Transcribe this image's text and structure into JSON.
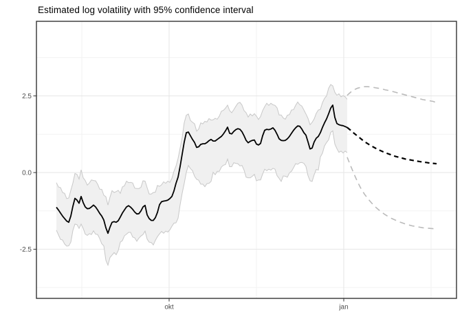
{
  "title": "Estimated log volatility with 95% confidence interval",
  "colors": {
    "history_line": "#000000",
    "forecast_line": "#000000",
    "forecast_ci": "#bababa",
    "ribbon_fill": "#f0f0f0",
    "ribbon_edge": "#c8c8c8",
    "grid_major": "#e6e6e6",
    "grid_minor": "#f2f2f2",
    "panel_border": "#333333",
    "axis_tick": "#333333",
    "axis_text": "#4d4d4d",
    "title_text": "#000000",
    "panel_bg": "#ffffff"
  },
  "chart_data": {
    "type": "line",
    "title": "Estimated log volatility with 95% confidence interval",
    "xlabel": "",
    "ylabel": "",
    "legend": "none",
    "grid": "on",
    "x_axis": {
      "unit": "days (day 0 = first observation, early August)",
      "domain_days": [
        -10.5,
        210.8
      ],
      "major_ticks": [
        {
          "day": 59.4,
          "label": "okt"
        },
        {
          "day": 151.4,
          "label": "jan"
        }
      ],
      "minor_tick_days": [
        13.4,
        105.4,
        197.4
      ]
    },
    "y_axis": {
      "domain": [
        -4.1,
        4.93
      ],
      "major_ticks": [
        {
          "value": 2.5,
          "label": "2.5"
        },
        {
          "value": 0.0,
          "label": "0.0"
        },
        {
          "value": -2.5,
          "label": "-2.5"
        }
      ],
      "minor_tick_values": [
        3.75,
        1.25,
        -1.25,
        -3.75
      ]
    },
    "series": [
      {
        "name": "estimated_mean",
        "role": "historical mean log volatility",
        "style": "solid_black",
        "day_start": 0,
        "day_step": 1.0866,
        "values": [
          -1.13,
          -1.22,
          -1.32,
          -1.42,
          -1.5,
          -1.58,
          -1.62,
          -1.42,
          -1.1,
          -0.84,
          -0.9,
          -1.0,
          -0.78,
          -0.98,
          -1.12,
          -1.18,
          -1.17,
          -1.12,
          -1.06,
          -1.12,
          -1.22,
          -1.33,
          -1.42,
          -1.55,
          -1.8,
          -1.98,
          -1.78,
          -1.62,
          -1.6,
          -1.62,
          -1.57,
          -1.45,
          -1.32,
          -1.22,
          -1.12,
          -1.08,
          -1.13,
          -1.2,
          -1.29,
          -1.35,
          -1.34,
          -1.25,
          -1.12,
          -1.07,
          -1.38,
          -1.5,
          -1.56,
          -1.56,
          -1.47,
          -1.3,
          -1.05,
          -0.95,
          -0.93,
          -0.92,
          -0.9,
          -0.85,
          -0.78,
          -0.6,
          -0.35,
          -0.15,
          0.2,
          0.6,
          1.0,
          1.3,
          1.32,
          1.2,
          1.08,
          0.98,
          0.82,
          0.84,
          0.92,
          0.94,
          0.94,
          0.98,
          1.04,
          1.08,
          1.03,
          1.03,
          1.08,
          1.13,
          1.18,
          1.26,
          1.36,
          1.48,
          1.28,
          1.26,
          1.34,
          1.4,
          1.43,
          1.41,
          1.33,
          1.2,
          1.05,
          0.97,
          1.02,
          1.05,
          1.06,
          0.93,
          0.9,
          0.95,
          1.2,
          1.38,
          1.41,
          1.4,
          1.42,
          1.46,
          1.38,
          1.25,
          1.1,
          1.05,
          1.04,
          1.05,
          1.1,
          1.18,
          1.28,
          1.38,
          1.46,
          1.52,
          1.51,
          1.42,
          1.3,
          1.22,
          1.0,
          0.77,
          0.8,
          1.0,
          1.12,
          1.18,
          1.3,
          1.47,
          1.62,
          1.75,
          1.92,
          2.1,
          2.2,
          1.8,
          1.6,
          1.56,
          1.54,
          1.53,
          1.5,
          1.47
        ]
      },
      {
        "name": "ci95_upper",
        "role": "historical 95% CI upper bound (ribbon top)",
        "style": "ribbon_edge",
        "day_start": 0,
        "day_step": 1.0866,
        "values": [
          -0.33,
          -0.47,
          -0.49,
          -0.65,
          -0.68,
          -0.85,
          -0.83,
          -0.58,
          -0.34,
          -0.03,
          -0.06,
          -0.21,
          0.09,
          -0.17,
          -0.26,
          -0.41,
          -0.34,
          -0.24,
          -0.26,
          -0.27,
          -0.38,
          -0.54,
          -0.55,
          -0.74,
          -0.79,
          -1.06,
          -0.8,
          -0.59,
          -0.65,
          -0.62,
          -0.58,
          -0.68,
          -0.47,
          -0.43,
          -0.28,
          -0.33,
          -0.32,
          -0.34,
          -0.51,
          -0.52,
          -0.52,
          -0.48,
          -0.27,
          -0.28,
          -0.49,
          -0.7,
          -0.7,
          -0.65,
          -0.64,
          -0.42,
          -0.45,
          -0.4,
          -0.3,
          -0.35,
          -0.28,
          -0.32,
          -0.19,
          0.04,
          0.21,
          0.46,
          0.8,
          1.15,
          1.63,
          1.87,
          1.91,
          1.7,
          1.64,
          1.59,
          1.35,
          1.42,
          1.62,
          1.59,
          1.67,
          1.65,
          1.76,
          1.71,
          1.72,
          1.77,
          1.74,
          1.84,
          2.0,
          2.03,
          2.1,
          2.2,
          2.02,
          1.95,
          2.05,
          2.16,
          2.26,
          2.29,
          2.2,
          2.02,
          1.95,
          1.81,
          1.91,
          1.85,
          1.92,
          1.84,
          1.73,
          1.83,
          2.02,
          2.15,
          2.26,
          2.19,
          2.26,
          2.21,
          2.19,
          2.11,
          1.88,
          1.88,
          1.78,
          1.74,
          1.87,
          1.89,
          2.04,
          2.05,
          2.19,
          2.3,
          2.21,
          2.17,
          2.04,
          1.91,
          1.77,
          1.56,
          1.64,
          1.75,
          1.93,
          2.04,
          2.06,
          2.28,
          2.42,
          2.5,
          2.75,
          2.87,
          2.83,
          2.62,
          2.52,
          2.57,
          2.47,
          2.51,
          2.47,
          2.39
        ]
      },
      {
        "name": "ci95_lower",
        "role": "historical 95% CI lower bound (ribbon bottom)",
        "style": "ribbon_edge",
        "day_start": 0,
        "day_step": 1.0866,
        "values": [
          -1.88,
          -2.03,
          -2.18,
          -2.2,
          -2.33,
          -2.4,
          -2.39,
          -2.27,
          -1.89,
          -1.68,
          -1.7,
          -1.82,
          -1.68,
          -1.82,
          -2.01,
          -2.05,
          -1.99,
          -2.02,
          -1.9,
          -2.01,
          -2.02,
          -2.15,
          -2.32,
          -2.39,
          -2.86,
          -3.02,
          -2.77,
          -2.69,
          -2.61,
          -2.68,
          -2.54,
          -2.27,
          -2.22,
          -2.06,
          -2.01,
          -1.95,
          -1.95,
          -2.1,
          -2.13,
          -2.24,
          -2.14,
          -2.07,
          -2.02,
          -1.91,
          -2.17,
          -2.27,
          -2.28,
          -2.36,
          -2.21,
          -2.09,
          -2.0,
          -1.92,
          -1.98,
          -1.91,
          -1.94,
          -1.87,
          -1.75,
          -1.65,
          -1.64,
          -1.49,
          -1.05,
          -0.67,
          -0.35,
          0.01,
          0.23,
          0.13,
          0.06,
          -0.12,
          -0.22,
          -0.25,
          -0.38,
          -0.38,
          -0.46,
          -0.36,
          -0.35,
          -0.29,
          0.01,
          -0.07,
          0.04,
          0.04,
          0.18,
          0.24,
          0.26,
          0.44,
          0.19,
          0.19,
          0.32,
          0.3,
          0.29,
          0.22,
          0.23,
          0.08,
          -0.15,
          -0.17,
          -0.17,
          -0.12,
          -0.06,
          -0.27,
          -0.24,
          -0.24,
          -0.05,
          0.11,
          0.06,
          0.11,
          0.08,
          0.14,
          0.11,
          -0.1,
          -0.19,
          -0.29,
          -0.11,
          -0.12,
          -0.15,
          -0.01,
          0.04,
          0.16,
          0.29,
          0.27,
          0.32,
          0.33,
          0.3,
          0.2,
          -0.1,
          -0.27,
          -0.29,
          -0.07,
          0.1,
          0.08,
          0.51,
          0.63,
          0.87,
          0.98,
          1.07,
          1.31,
          1.36,
          0.93,
          0.78,
          0.66,
          0.7,
          0.64,
          0.7,
          0.65
        ]
      },
      {
        "name": "forecast_mean",
        "role": "forecast mean log volatility",
        "style": "dashed_black",
        "day_start": 153.2,
        "day_step": 1.811,
        "values": [
          1.47,
          1.38,
          1.28,
          1.19,
          1.1,
          1.01,
          0.94,
          0.87,
          0.81,
          0.75,
          0.7,
          0.65,
          0.61,
          0.57,
          0.53,
          0.5,
          0.47,
          0.44,
          0.42,
          0.4,
          0.38,
          0.36,
          0.34,
          0.33,
          0.31,
          0.3,
          0.29
        ]
      },
      {
        "name": "forecast_ci95_upper",
        "role": "forecast 95% CI upper bound",
        "style": "dashed_gray",
        "day_start": 153.2,
        "day_step": 1.811,
        "values": [
          2.52,
          2.62,
          2.7,
          2.75,
          2.78,
          2.8,
          2.8,
          2.79,
          2.77,
          2.75,
          2.73,
          2.7,
          2.68,
          2.65,
          2.62,
          2.59,
          2.56,
          2.53,
          2.5,
          2.47,
          2.44,
          2.41,
          2.38,
          2.36,
          2.34,
          2.32,
          2.28
        ]
      },
      {
        "name": "forecast_ci95_lower",
        "role": "forecast 95% CI lower bound",
        "style": "dashed_gray",
        "day_start": 153.2,
        "day_step": 1.811,
        "values": [
          0.5,
          0.22,
          -0.05,
          -0.3,
          -0.52,
          -0.7,
          -0.85,
          -0.98,
          -1.1,
          -1.2,
          -1.29,
          -1.37,
          -1.44,
          -1.5,
          -1.55,
          -1.6,
          -1.64,
          -1.68,
          -1.71,
          -1.74,
          -1.76,
          -1.78,
          -1.8,
          -1.81,
          -1.82,
          -1.83,
          -1.84
        ]
      }
    ]
  }
}
